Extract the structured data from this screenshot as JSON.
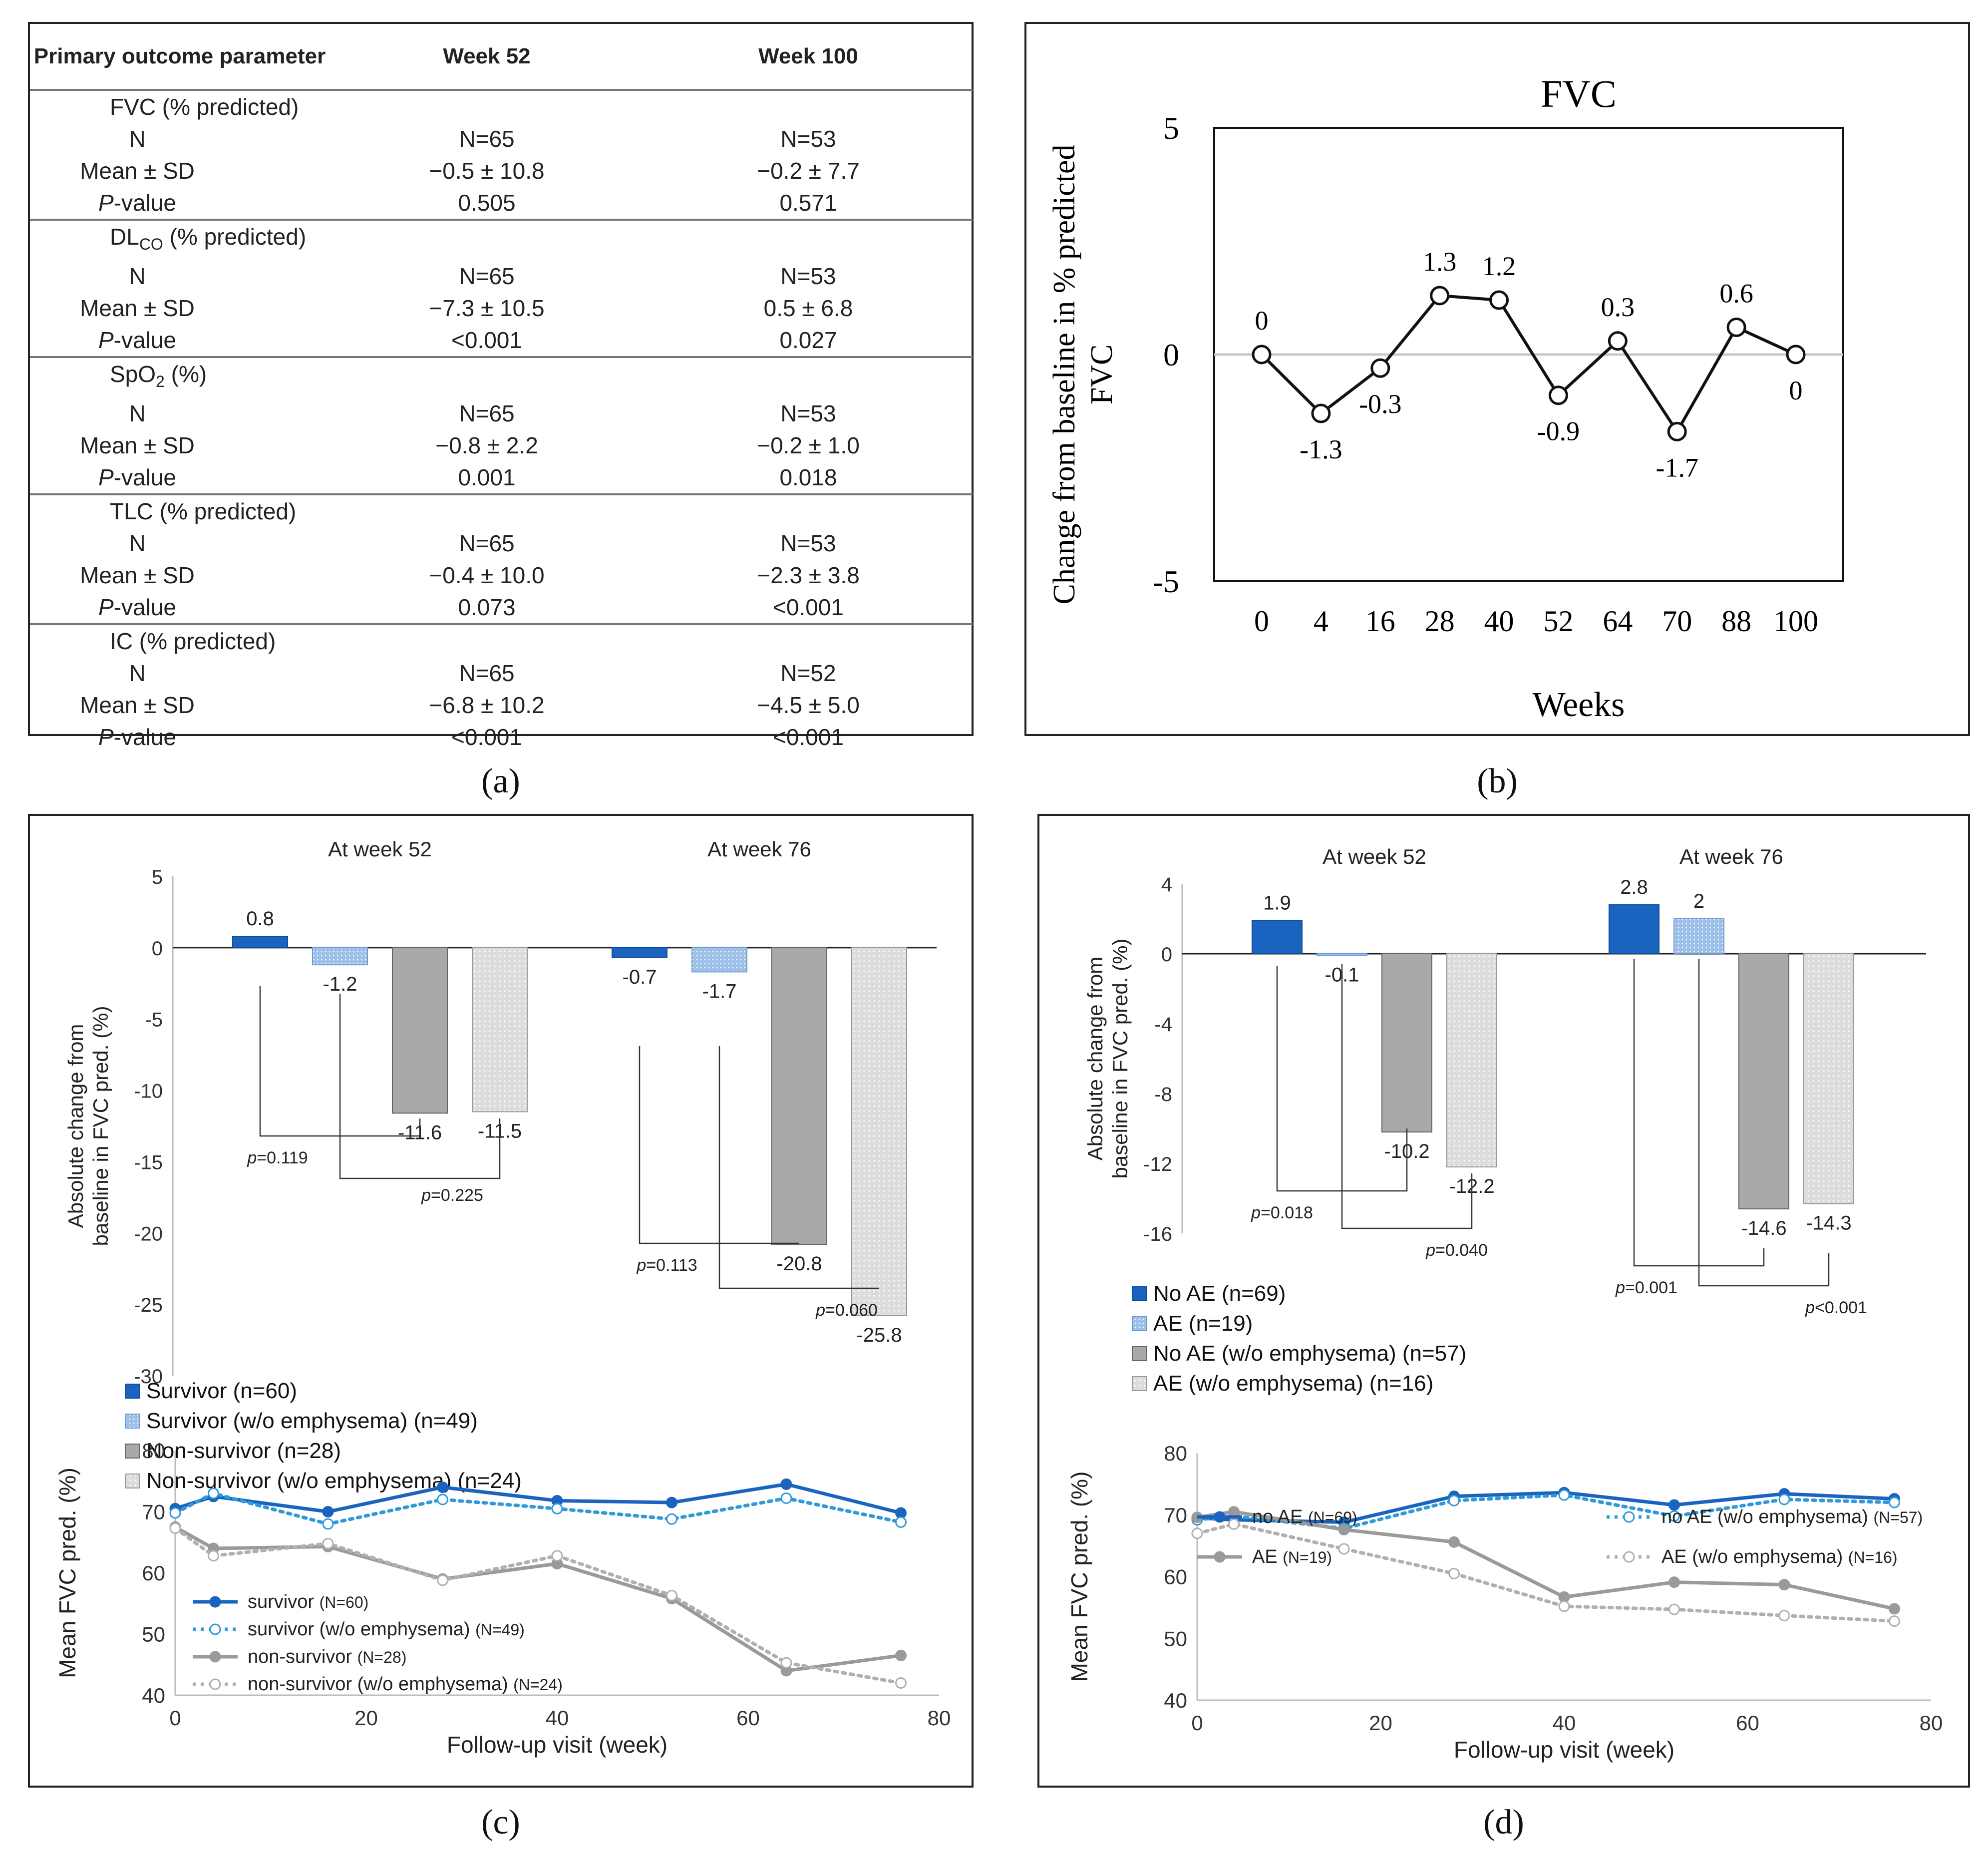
{
  "panel_labels": {
    "a": "(a)",
    "b": "(b)",
    "c": "(c)",
    "d": "(d)"
  },
  "chart_data": [
    {
      "type": "table",
      "panel": "a",
      "headers": [
        "Primary outcome parameter",
        "Week 52",
        "Week 100"
      ],
      "groups": [
        {
          "name": "FVC (% predicted)",
          "rows": [
            [
              "N",
              "N=65",
              "N=53"
            ],
            [
              "Mean ± SD",
              "−0.5 ± 10.8",
              "−0.2 ± 7.7"
            ],
            [
              "P-value",
              "0.505",
              "0.571"
            ]
          ]
        },
        {
          "name": "DLCO (% predicted)",
          "rows": [
            [
              "N",
              "N=65",
              "N=53"
            ],
            [
              "Mean ± SD",
              "−7.3 ± 10.5",
              "0.5 ± 6.8"
            ],
            [
              "P-value",
              "<0.001",
              "0.027"
            ]
          ]
        },
        {
          "name": "SpO2 (%)",
          "rows": [
            [
              "N",
              "N=65",
              "N=53"
            ],
            [
              "Mean ± SD",
              "−0.8 ± 2.2",
              "−0.2 ± 1.0"
            ],
            [
              "P-value",
              "0.001",
              "0.018"
            ]
          ]
        },
        {
          "name": "TLC (% predicted)",
          "rows": [
            [
              "N",
              "N=65",
              "N=53"
            ],
            [
              "Mean ± SD",
              "−0.4 ± 10.0",
              "−2.3 ± 3.8"
            ],
            [
              "P-value",
              "0.073",
              "<0.001"
            ]
          ]
        },
        {
          "name": "IC (% predicted)",
          "rows": [
            [
              "N",
              "N=65",
              "N=52"
            ],
            [
              "Mean ± SD",
              "−6.8 ± 10.2",
              "−4.5 ± 5.0"
            ],
            [
              "P-value",
              "<0.001",
              "<0.001"
            ]
          ]
        }
      ]
    },
    {
      "type": "line",
      "panel": "b",
      "title": "FVC",
      "xlabel": "Weeks",
      "ylabel": "Change from baseline in % predicted FVC",
      "categories": [
        "0",
        "4",
        "16",
        "28",
        "40",
        "52",
        "64",
        "70",
        "88",
        "100"
      ],
      "values": [
        0,
        -1.3,
        -0.3,
        1.3,
        1.2,
        -0.9,
        0.3,
        -1.7,
        0.6,
        0
      ],
      "value_labels": [
        "0",
        "-1.3",
        "-0.3",
        "1.3",
        "1.2",
        "-0.9",
        "0.3",
        "-1.7",
        "0.6",
        "0"
      ],
      "ylim": [
        -5,
        5
      ],
      "yticks": [
        "5",
        "0",
        "-5"
      ]
    },
    {
      "type": "bar",
      "panel": "c-top",
      "ylabel": "Absolute change from baseline in FVC pred. (%)",
      "groups": [
        "At week 52",
        "At week 76"
      ],
      "ylim": [
        -30,
        5
      ],
      "yticks": [
        "5",
        "0",
        "-5",
        "-10",
        "-15",
        "-20",
        "-25",
        "-30"
      ],
      "series": [
        {
          "name": "Survivor (n=60)",
          "values": [
            0.8,
            -0.7
          ],
          "labels": [
            "0.8",
            "-0.7"
          ]
        },
        {
          "name": "Survivor (w/o emphysema) (n=49)",
          "values": [
            -1.2,
            -1.7
          ],
          "labels": [
            "-1.2",
            "-1.7"
          ]
        },
        {
          "name": "Non-survivor (n=28)",
          "values": [
            -11.6,
            -20.8
          ],
          "labels": [
            "-11.6",
            "-20.8"
          ]
        },
        {
          "name": "Non-survivor (w/o emphysema) (n=24)",
          "values": [
            -11.5,
            -25.8
          ],
          "labels": [
            "-11.5",
            "-25.8"
          ]
        }
      ],
      "annotations": [
        {
          "group": 0,
          "text_p": "p",
          "text_v": "=0.119"
        },
        {
          "group": 0,
          "text_p": "p",
          "text_v": "=0.225"
        },
        {
          "group": 1,
          "text_p": "p",
          "text_v": "=0.113"
        },
        {
          "group": 1,
          "text_p": "p",
          "text_v": "=0.060"
        }
      ]
    },
    {
      "type": "line",
      "panel": "c-bottom",
      "xlabel": "Follow-up visit (week)",
      "ylabel": "Mean FVC pred. (%)",
      "xlim": [
        0,
        80
      ],
      "ylim": [
        40,
        80
      ],
      "xticks": [
        "0",
        "20",
        "40",
        "60",
        "80"
      ],
      "yticks": [
        "80",
        "70",
        "60",
        "50",
        "40"
      ],
      "x": [
        0,
        4,
        16,
        28,
        40,
        52,
        64,
        76
      ],
      "series": [
        {
          "name": "survivor",
          "n": "(N=60)",
          "values": [
            70.5,
            72.5,
            70,
            74,
            71.8,
            71.5,
            74.5,
            69.8
          ]
        },
        {
          "name": "survivor (w/o emphysema)",
          "n": "(N=49)",
          "values": [
            69.8,
            73,
            68,
            72,
            70.5,
            68.8,
            72.2,
            68.3
          ]
        },
        {
          "name": "non-survivor",
          "n": "(N=28)",
          "values": [
            67.5,
            64,
            64.3,
            59,
            61.5,
            55.8,
            44,
            46.5
          ]
        },
        {
          "name": "non-survivor (w/o emphysema)",
          "n": "(N=24)",
          "values": [
            67.3,
            62.8,
            64.8,
            58.8,
            62.8,
            56.3,
            45.3,
            42
          ]
        }
      ]
    },
    {
      "type": "bar",
      "panel": "d-top",
      "ylabel": "Absolute change from baseline in FVC pred. (%)",
      "groups": [
        "At week 52",
        "At week 76"
      ],
      "ylim": [
        -16,
        4
      ],
      "yticks": [
        "4",
        "0",
        "-4",
        "-8",
        "-12",
        "-16"
      ],
      "series": [
        {
          "name": "No AE (n=69)",
          "values": [
            1.9,
            2.8
          ],
          "labels": [
            "1.9",
            "2.8"
          ]
        },
        {
          "name": "AE (n=19)",
          "values": [
            -0.1,
            2
          ],
          "labels": [
            "-0.1",
            "2"
          ]
        },
        {
          "name": "No AE (w/o emphysema) (n=57)",
          "values": [
            -10.2,
            -14.6
          ],
          "labels": [
            "-10.2",
            "-14.6"
          ]
        },
        {
          "name": "AE (w/o emphysema) (n=16)",
          "values": [
            -12.2,
            -14.3
          ],
          "labels": [
            "-12.2",
            "-14.3"
          ]
        }
      ],
      "annotations": [
        {
          "group": 0,
          "text_p": "p",
          "text_v": "=0.018"
        },
        {
          "group": 0,
          "text_p": "p",
          "text_v": "=0.040"
        },
        {
          "group": 1,
          "text_p": "p",
          "text_v": "=0.001"
        },
        {
          "group": 1,
          "text_p": "p",
          "text_v": "<0.001"
        }
      ]
    },
    {
      "type": "line",
      "panel": "d-bottom",
      "xlabel": "Follow-up visit (week)",
      "ylabel": "Mean FVC pred. (%)",
      "xlim": [
        0,
        80
      ],
      "ylim": [
        40,
        80
      ],
      "xticks": [
        "0",
        "20",
        "40",
        "60",
        "80"
      ],
      "yticks": [
        "80",
        "70",
        "60",
        "50",
        "40"
      ],
      "x": [
        0,
        4,
        16,
        28,
        40,
        52,
        64,
        76
      ],
      "series": [
        {
          "name": "no AE",
          "n": "(N=69)",
          "values": [
            69.5,
            69.2,
            68.8,
            73,
            73.6,
            71.6,
            73.4,
            72.6
          ]
        },
        {
          "name": "no AE (w/o emphysema)",
          "n": "(N=57)",
          "values": [
            69.2,
            69.8,
            67.8,
            72.3,
            73.2,
            69.8,
            72.5,
            72
          ]
        },
        {
          "name": "AE",
          "n": "(N=19)",
          "values": [
            69.6,
            70.5,
            67.6,
            65.6,
            56.7,
            59.1,
            58.7,
            54.8
          ]
        },
        {
          "name": "AE (w/o emphysema)",
          "n": "(N=16)",
          "values": [
            67,
            68.5,
            64.5,
            60.5,
            55.2,
            54.7,
            53.7,
            52.8
          ]
        }
      ]
    }
  ],
  "colors": {
    "blue_dark": "#1a64c0",
    "blue_light": "#9dc0e8",
    "blue_dotted": "#2f9ad8",
    "gray_dark": "#a9a9a9",
    "gray_light": "#dcdcdc",
    "gray_line": "#9a9a9a",
    "gray_dotted": "#b0b0b0"
  }
}
